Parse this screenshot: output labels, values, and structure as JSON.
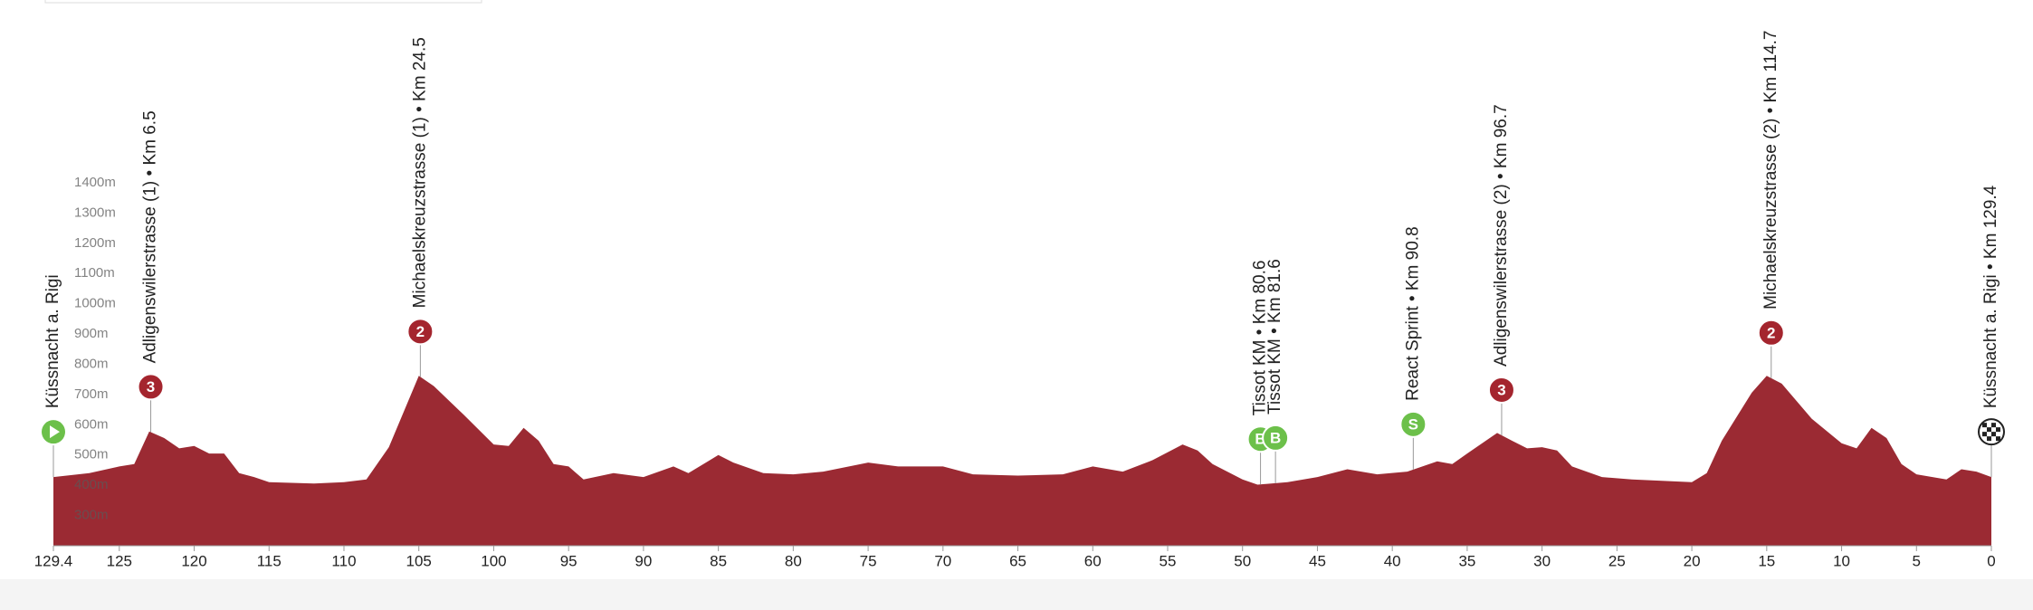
{
  "chart_data": {
    "type": "area",
    "xlim": [
      129.4,
      0
    ],
    "xticks": [
      129.4,
      125,
      120,
      115,
      110,
      105,
      100,
      95,
      90,
      85,
      80,
      75,
      70,
      65,
      60,
      55,
      50,
      45,
      40,
      35,
      30,
      25,
      20,
      15,
      10,
      5,
      0
    ],
    "ylim": [
      200,
      1400
    ],
    "yticks": [
      {
        "value": 300,
        "label": "300m"
      },
      {
        "value": 400,
        "label": "400m"
      },
      {
        "value": 500,
        "label": "500m"
      },
      {
        "value": 600,
        "label": "600m"
      },
      {
        "value": 700,
        "label": "700m"
      },
      {
        "value": 800,
        "label": "800m"
      },
      {
        "value": 900,
        "label": "900m"
      },
      {
        "value": 1000,
        "label": "1000m"
      },
      {
        "value": 1100,
        "label": "1100m"
      },
      {
        "value": 1200,
        "label": "1200m"
      },
      {
        "value": 1300,
        "label": "1300m"
      },
      {
        "value": 1400,
        "label": "1400m"
      }
    ],
    "x": [
      129.4,
      127,
      125,
      124,
      123,
      122,
      121,
      120,
      119,
      118,
      117,
      116,
      115,
      112,
      110,
      108.5,
      107,
      105,
      104,
      102,
      100,
      99,
      98,
      97,
      96,
      95,
      94,
      92,
      90,
      88,
      87,
      85,
      84,
      82,
      80,
      78,
      75,
      73,
      70,
      68,
      65,
      62,
      60,
      58,
      56,
      54,
      53,
      52,
      50,
      49,
      47,
      45,
      43,
      41,
      39,
      37,
      36,
      35,
      33,
      32,
      31,
      30,
      29,
      28,
      26,
      24,
      22,
      20,
      19,
      18,
      16,
      15,
      14,
      12,
      10,
      9,
      8,
      7,
      6,
      5,
      3,
      2,
      1,
      0
    ],
    "series": [
      {
        "color": "#9b2a33",
        "values": [
          427,
          440,
          462,
          470,
          578,
          556,
          522,
          530,
          505,
          505,
          440,
          427,
          410,
          406,
          410,
          419,
          526,
          762,
          728,
          633,
          535,
          530,
          590,
          547,
          470,
          462,
          419,
          440,
          427,
          462,
          440,
          500,
          475,
          440,
          436,
          445,
          475,
          462,
          462,
          436,
          432,
          436,
          462,
          445,
          483,
          535,
          515,
          470,
          419,
          402,
          410,
          427,
          453,
          436,
          445,
          479,
          470,
          505,
          573,
          547,
          522,
          526,
          515,
          462,
          427,
          419,
          415,
          410,
          440,
          547,
          706,
          762,
          736,
          620,
          539,
          522,
          590,
          556,
          470,
          436,
          419,
          453,
          445,
          427
        ]
      }
    ],
    "markers": [
      {
        "label": "Küssnacht a. Rigi"
      },
      {
        "label": "Adligenswilerstrasse (1) • Km 6.5",
        "km": 6.5,
        "badge": "3",
        "color": "#a4252e"
      },
      {
        "label": "Michaelskreuzstrasse (1) • Km 24.5",
        "km": 24.5,
        "badge": "2",
        "color": "#a4252e"
      },
      {
        "label": "Tissot KM • Km 80.6",
        "km": 80.6,
        "badge": "B",
        "color": "#6cc04a"
      },
      {
        "label": "Tissot KM • Km 81.6",
        "km": 81.6,
        "badge": "B",
        "color": "#6cc04a"
      },
      {
        "label": "React Sprint • Km 90.8",
        "km": 90.8,
        "badge": "S",
        "color": "#6cc04a"
      },
      {
        "label": "Adligenswilerstrasse (2) • Km 96.7",
        "km": 96.7,
        "badge": "3",
        "color": "#a4252e"
      },
      {
        "label": "Michaelskreuzstrasse (2) • Km 114.7",
        "km": 114.7,
        "badge": "2",
        "color": "#a4252e"
      },
      {
        "label": "Küssnacht a. Rigi • Km 129.4",
        "km": 129.4
      }
    ]
  }
}
